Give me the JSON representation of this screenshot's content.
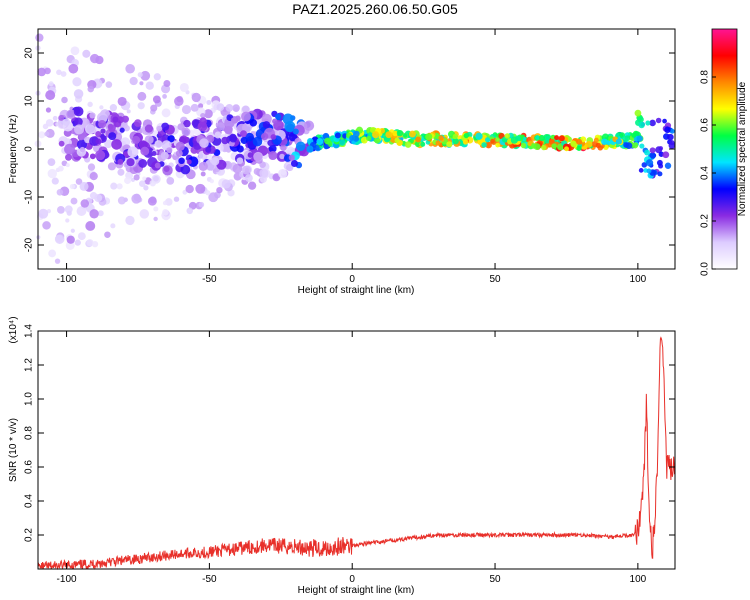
{
  "title": "PAZ1.2025.260.06.50.G05",
  "chart_data": [
    {
      "type": "heatmap",
      "xlabel": "Height of straight line (km)",
      "ylabel": "Frequency (Hz)",
      "xlim": [
        -110,
        113
      ],
      "ylim": [
        -25,
        25
      ],
      "xticks": [
        -100,
        -50,
        0,
        50,
        100
      ],
      "yticks": [
        -20,
        -10,
        0,
        10,
        20
      ],
      "colorbar": {
        "label": "Normalized spectral amplitude",
        "range": [
          0,
          1
        ],
        "ticks": [
          "0.0",
          "0.2",
          "0.4",
          "0.6",
          "0.8"
        ],
        "tick_values": [
          0,
          0.2,
          0.4,
          0.6,
          0.8
        ],
        "colormap": [
          "#ffffff",
          "#ddccff",
          "#8a2be2",
          "#0000ff",
          "#00e5ff",
          "#00ff44",
          "#ffff00",
          "#ff8800",
          "#ff0000",
          "#ff1493"
        ]
      },
      "ridge": {
        "description_points_x": [
          -90,
          -70,
          -50,
          -30,
          -15,
          -5,
          5,
          20,
          50,
          80,
          100,
          105,
          113
        ],
        "frequency": [
          3,
          0,
          1,
          3,
          1,
          2,
          3,
          2,
          2,
          1,
          2,
          0,
          1
        ],
        "amplitude": [
          0.3,
          0.35,
          0.35,
          0.4,
          0.5,
          0.6,
          0.7,
          0.75,
          0.8,
          0.9,
          0.6,
          0.4,
          0.4
        ]
      }
    },
    {
      "type": "line",
      "xlabel": "Height of straight line (km)",
      "ylabel": "SNR (10 * v/v)",
      "yscale_label": "(x10⁴)",
      "xlim": [
        -110,
        113
      ],
      "ylim": [
        0,
        1.4
      ],
      "xticks": [
        -100,
        -50,
        0,
        50,
        100
      ],
      "yticks": [
        "0.2",
        "0.4",
        "0.6",
        "0.8",
        "1.0",
        "1.2",
        "1.4"
      ],
      "ytick_values": [
        0.2,
        0.4,
        0.6,
        0.8,
        1.0,
        1.2,
        1.4
      ],
      "color": "#e8302a",
      "series": [
        {
          "x": [
            -110,
            -100,
            -90,
            -80,
            -70,
            -60,
            -50,
            -40,
            -30,
            -20,
            -10,
            0,
            10,
            20,
            30,
            40,
            50,
            60,
            70,
            80,
            90,
            98,
            100,
            102,
            103,
            104,
            105,
            106,
            107,
            108,
            109,
            110,
            113
          ],
          "values": [
            0.01,
            0.02,
            0.03,
            0.05,
            0.07,
            0.09,
            0.1,
            0.12,
            0.14,
            0.13,
            0.12,
            0.14,
            0.16,
            0.18,
            0.2,
            0.2,
            0.2,
            0.2,
            0.2,
            0.2,
            0.19,
            0.2,
            0.22,
            0.5,
            0.97,
            0.3,
            0.1,
            0.3,
            0.7,
            1.4,
            1.2,
            0.6,
            0.58
          ]
        }
      ]
    }
  ]
}
